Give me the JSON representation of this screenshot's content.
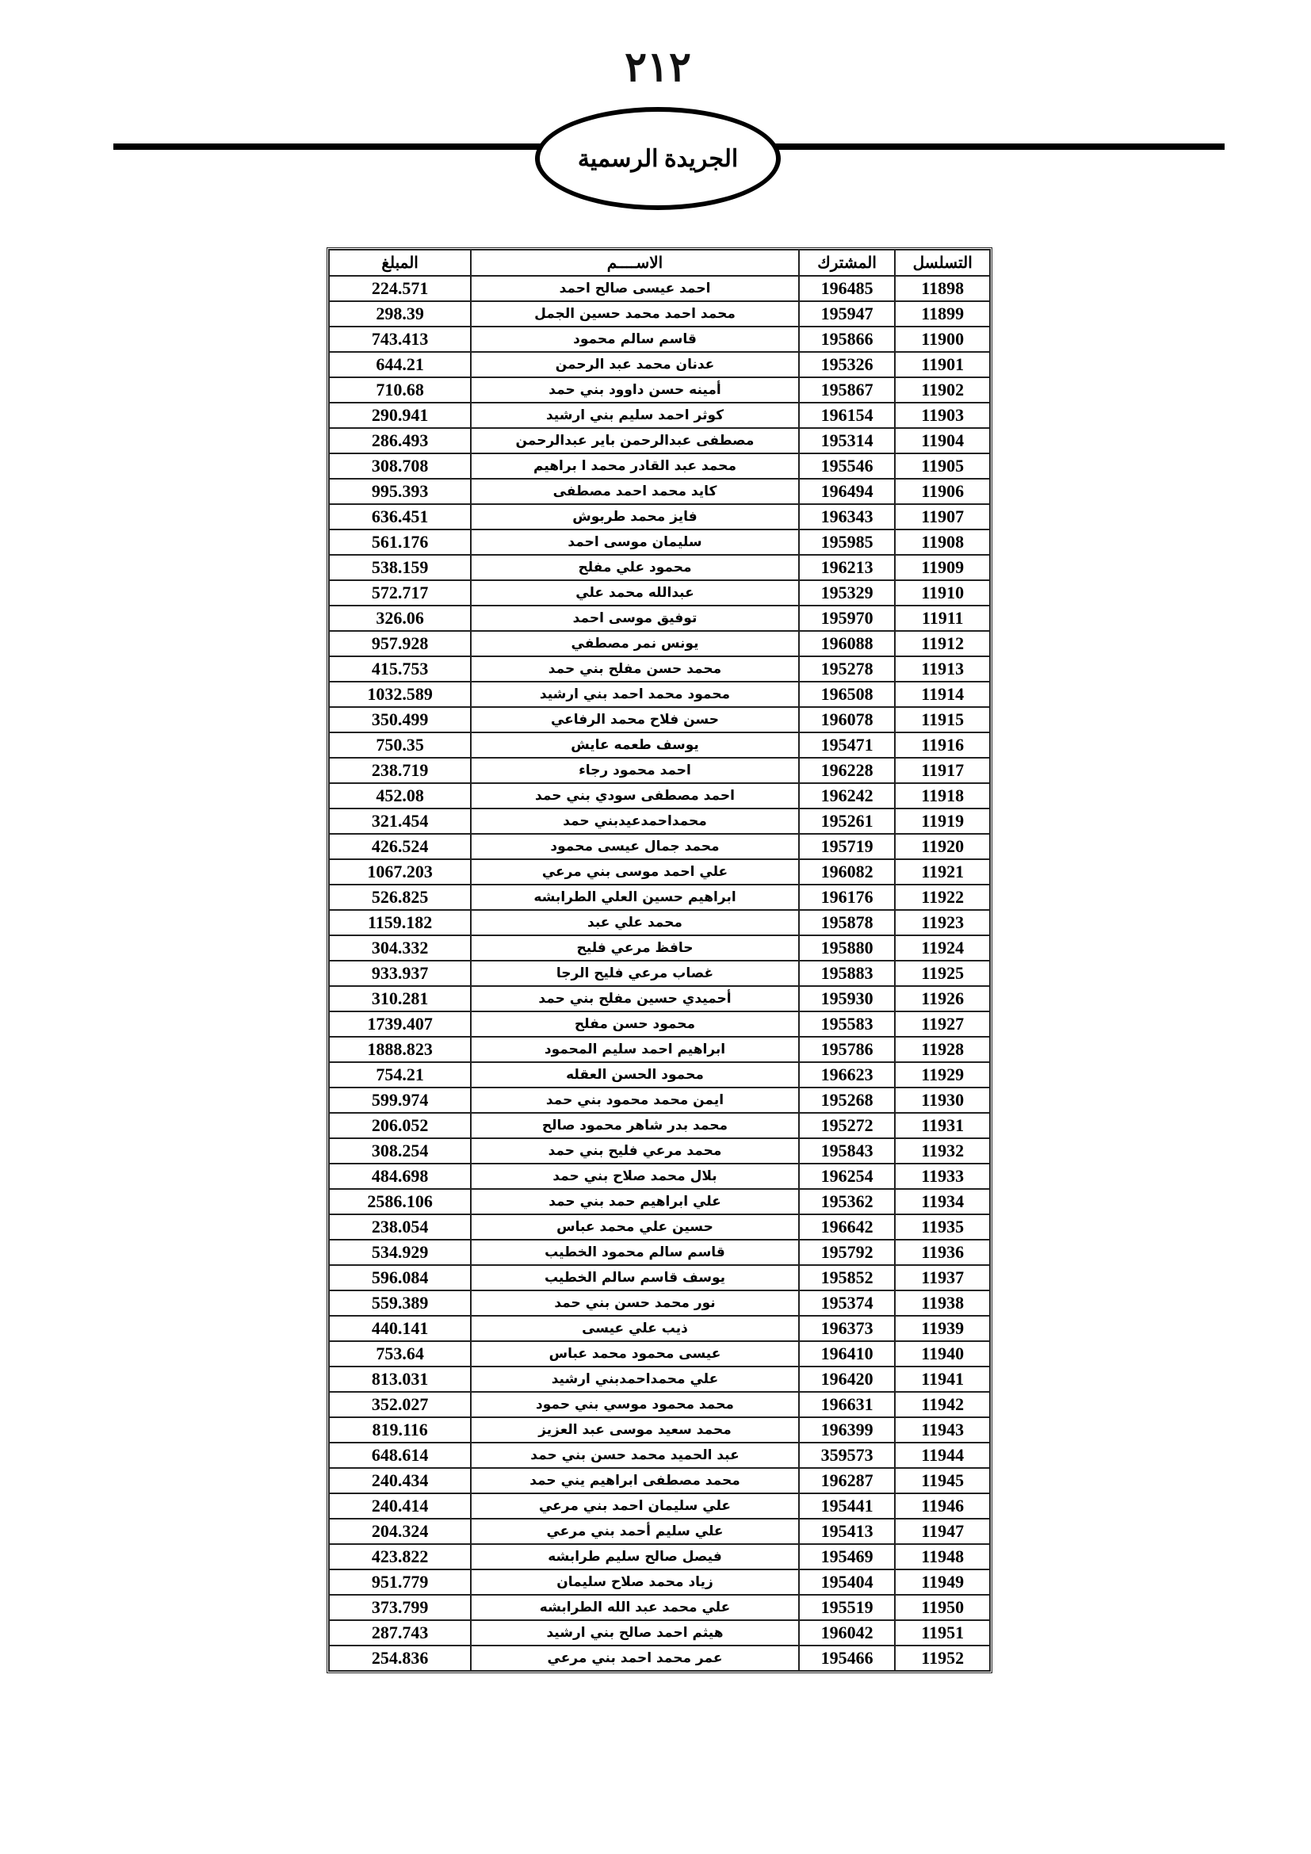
{
  "header": {
    "page_number": "٢١٢",
    "publication_title": "الجريدة الرسمية"
  },
  "table": {
    "columns": [
      "التسلسل",
      "المشترك",
      "الاســــم",
      "المبلغ"
    ],
    "rows": [
      [
        "11898",
        "196485",
        "احمد عيسى صالح احمد",
        "224.571"
      ],
      [
        "11899",
        "195947",
        "محمد احمد محمد حسين الجمل",
        "298.39"
      ],
      [
        "11900",
        "195866",
        "قاسم سالم محمود",
        "743.413"
      ],
      [
        "11901",
        "195326",
        "عدنان محمد عبد الرحمن",
        "644.21"
      ],
      [
        "11902",
        "195867",
        "أمينه حسن داوود بني حمد",
        "710.68"
      ],
      [
        "11903",
        "196154",
        "كوثر احمد سليم بني ارشيد",
        "290.941"
      ],
      [
        "11904",
        "195314",
        "مصطفى عبدالرحمن باير عبدالرحمن",
        "286.493"
      ],
      [
        "11905",
        "195546",
        "محمد عبد القادر محمد ا براهيم",
        "308.708"
      ],
      [
        "11906",
        "196494",
        "كايد محمد احمد مصطفى",
        "995.393"
      ],
      [
        "11907",
        "196343",
        "فايز محمد طربوش",
        "636.451"
      ],
      [
        "11908",
        "195985",
        "سليمان موسى احمد",
        "561.176"
      ],
      [
        "11909",
        "196213",
        "محمود علي مفلح",
        "538.159"
      ],
      [
        "11910",
        "195329",
        "عبدالله محمد علي",
        "572.717"
      ],
      [
        "11911",
        "195970",
        "توفيق موسى احمد",
        "326.06"
      ],
      [
        "11912",
        "196088",
        "يونس نمر مصطفي",
        "957.928"
      ],
      [
        "11913",
        "195278",
        "محمد حسن مفلح بني حمد",
        "415.753"
      ],
      [
        "11914",
        "196508",
        "محمود محمد احمد بني ارشيد",
        "1032.589"
      ],
      [
        "11915",
        "196078",
        "حسن فلاح محمد الرفاعي",
        "350.499"
      ],
      [
        "11916",
        "195471",
        "يوسف طعمه عايش",
        "750.35"
      ],
      [
        "11917",
        "196228",
        "احمد محمود رجاء",
        "238.719"
      ],
      [
        "11918",
        "196242",
        "احمد مصطفى سودي بني حمد",
        "452.08"
      ],
      [
        "11919",
        "195261",
        "محمداحمدعيدبني حمد",
        "321.454"
      ],
      [
        "11920",
        "195719",
        "محمد جمال عيسى محمود",
        "426.524"
      ],
      [
        "11921",
        "196082",
        "علي احمد موسى بني مرعي",
        "1067.203"
      ],
      [
        "11922",
        "196176",
        "ابراهيم حسين العلي الطرابشه",
        "526.825"
      ],
      [
        "11923",
        "195878",
        "محمد علي عبد",
        "1159.182"
      ],
      [
        "11924",
        "195880",
        "حافظ مرعي فليح",
        "304.332"
      ],
      [
        "11925",
        "195883",
        "غصاب مرعي فليح  الرجا",
        "933.937"
      ],
      [
        "11926",
        "195930",
        "أحميدي حسين مفلح بني حمد",
        "310.281"
      ],
      [
        "11927",
        "195583",
        "محمود حسن مفلح",
        "1739.407"
      ],
      [
        "11928",
        "195786",
        "ابراهيم احمد سليم المحمود",
        "1888.823"
      ],
      [
        "11929",
        "196623",
        "محمود الحسن العقله",
        "754.21"
      ],
      [
        "11930",
        "195268",
        "ايمن محمد محمود بني حمد",
        "599.974"
      ],
      [
        "11931",
        "195272",
        "محمد بدر شاهر محمود صالح",
        "206.052"
      ],
      [
        "11932",
        "195843",
        "محمد مرعي فليح بني حمد",
        "308.254"
      ],
      [
        "11933",
        "196254",
        "بلال محمد صلاح بني حمد",
        "484.698"
      ],
      [
        "11934",
        "195362",
        "علي ابراهيم حمد بني حمد",
        "2586.106"
      ],
      [
        "11935",
        "196642",
        "حسين علي محمد عباس",
        "238.054"
      ],
      [
        "11936",
        "195792",
        "قاسم سالم محمود الخطيب",
        "534.929"
      ],
      [
        "11937",
        "195852",
        "يوسف قاسم سالم الخطيب",
        "596.084"
      ],
      [
        "11938",
        "195374",
        "نور محمد حسن بني حمد",
        "559.389"
      ],
      [
        "11939",
        "196373",
        "ذيب علي عيسى",
        "440.141"
      ],
      [
        "11940",
        "196410",
        "عيسى محمود محمد عباس",
        "753.64"
      ],
      [
        "11941",
        "196420",
        "علي محمداحمدبني ارشيد",
        "813.031"
      ],
      [
        "11942",
        "196631",
        "محمد محمود موسي بني حمود",
        "352.027"
      ],
      [
        "11943",
        "196399",
        "محمد سعيد موسى عبد العزيز",
        "819.116"
      ],
      [
        "11944",
        "359573",
        "عبد الحميد محمد حسن بني حمد",
        "648.614"
      ],
      [
        "11945",
        "196287",
        "محمد مصطفى ابراهيم يني حمد",
        "240.434"
      ],
      [
        "11946",
        "195441",
        "علي سليمان احمد  بني مرعي",
        "240.414"
      ],
      [
        "11947",
        "195413",
        "علي سليم أحمد بني مرعي",
        "204.324"
      ],
      [
        "11948",
        "195469",
        "فيصل صالح سليم طرابشه",
        "423.822"
      ],
      [
        "11949",
        "195404",
        "زياد محمد صلاح سليمان",
        "951.779"
      ],
      [
        "11950",
        "195519",
        "علي محمد عبد الله الطرابشه",
        "373.799"
      ],
      [
        "11951",
        "196042",
        "هيثم احمد صالح بني ارشيد",
        "287.743"
      ],
      [
        "11952",
        "195466",
        "عمر محمد احمد بني مرعي",
        "254.836"
      ]
    ]
  }
}
